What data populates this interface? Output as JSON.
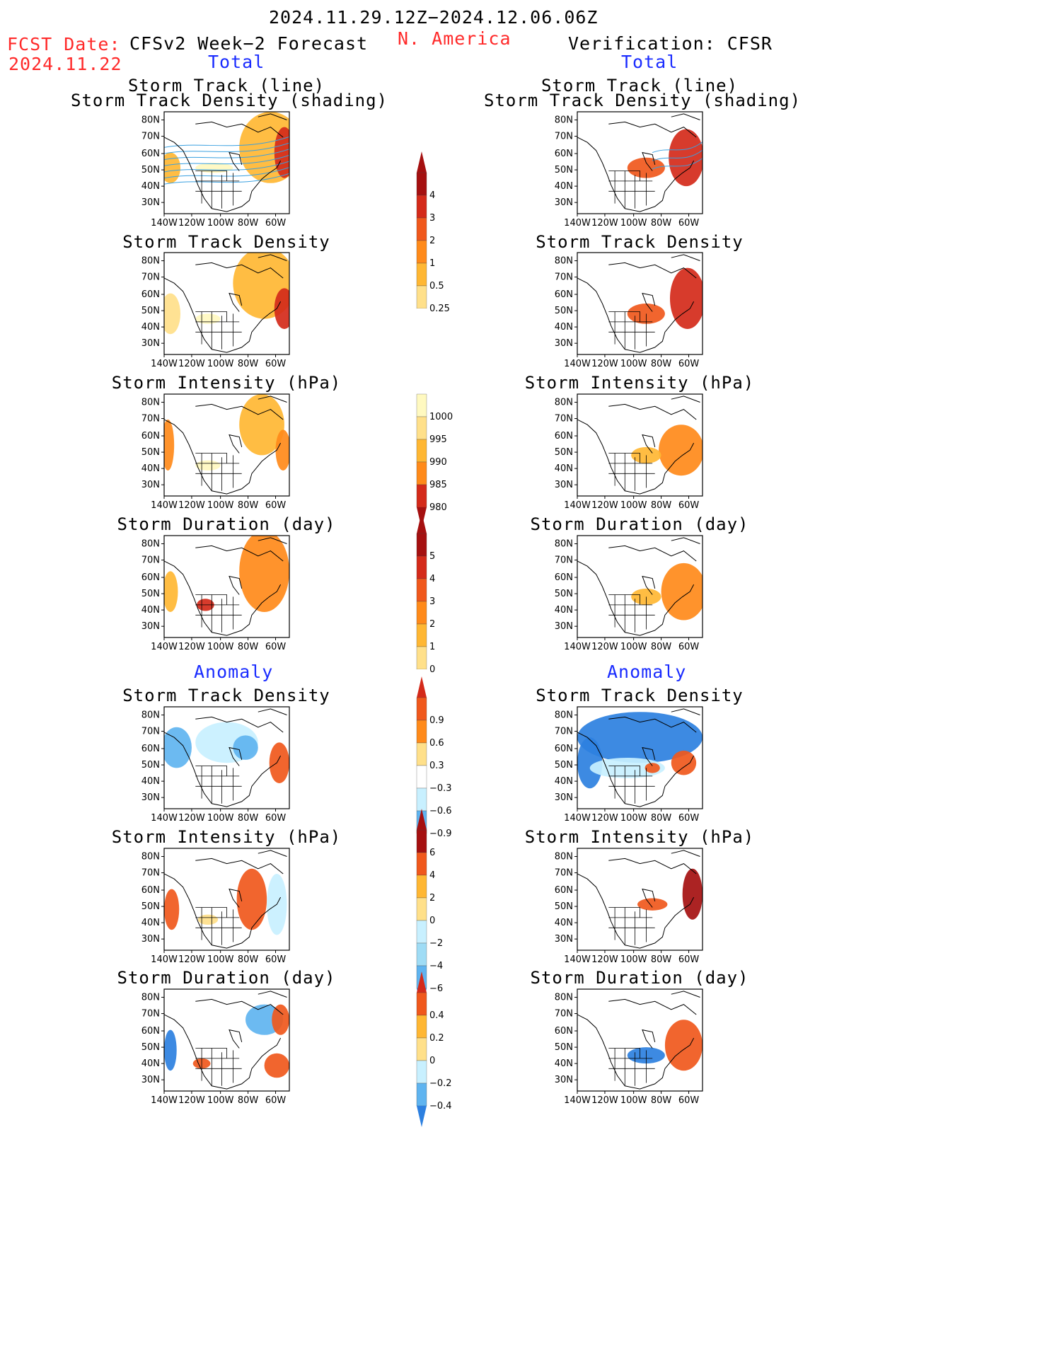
{
  "header": {
    "time_range": "2024.11.29.12Z−2024.12.06.06Z",
    "region": "N. America",
    "fcst_date_label": "FCST Date:",
    "fcst_date_value": "2024.11.22",
    "left_title": "CFSv2 Week−2 Forecast",
    "right_title": "Verification: CFSR",
    "total_label": "Total",
    "anomaly_label": "Anomaly"
  },
  "panel_titles": {
    "storm_track_line": "Storm Track (line)",
    "storm_track_density_shading": "Storm Track Density (shading)",
    "storm_track_density": "Storm Track Density",
    "storm_intensity": "Storm Intensity (hPa)",
    "storm_duration": "Storm Duration (day)"
  },
  "map_axes": {
    "lat_labels": [
      "80N",
      "70N",
      "60N",
      "50N",
      "40N",
      "30N"
    ],
    "lon_labels": [
      "140W",
      "120W",
      "100W",
      "80W",
      "60W"
    ]
  },
  "colorbars": {
    "density": [
      "4",
      "3",
      "2",
      "1",
      "0.5",
      "0.25"
    ],
    "intensity": [
      "1000",
      "995",
      "990",
      "985",
      "980"
    ],
    "duration": [
      "5",
      "4",
      "3",
      "2",
      "1",
      "0"
    ],
    "density_anom": [
      "0.9",
      "0.6",
      "0.3",
      "−0.3",
      "−0.6",
      "−0.9"
    ],
    "intensity_anom": [
      "6",
      "4",
      "2",
      "0",
      "−2",
      "−4",
      "−6"
    ],
    "duration_anom": [
      "0.4",
      "0.2",
      "0",
      "−0.2",
      "−0.4"
    ]
  },
  "colors": {
    "title_red": "#ff2a2a",
    "label_blue": "#1a2cff",
    "warm_scale": [
      "#fff9c0",
      "#ffe08a",
      "#ffb733",
      "#ff8a1a",
      "#f0581c",
      "#d42a1a",
      "#a51010"
    ],
    "cool_scale": [
      "#c8f0ff",
      "#9fdcf5",
      "#5fb4f0",
      "#2d80e0",
      "#1a4fc0"
    ]
  }
}
